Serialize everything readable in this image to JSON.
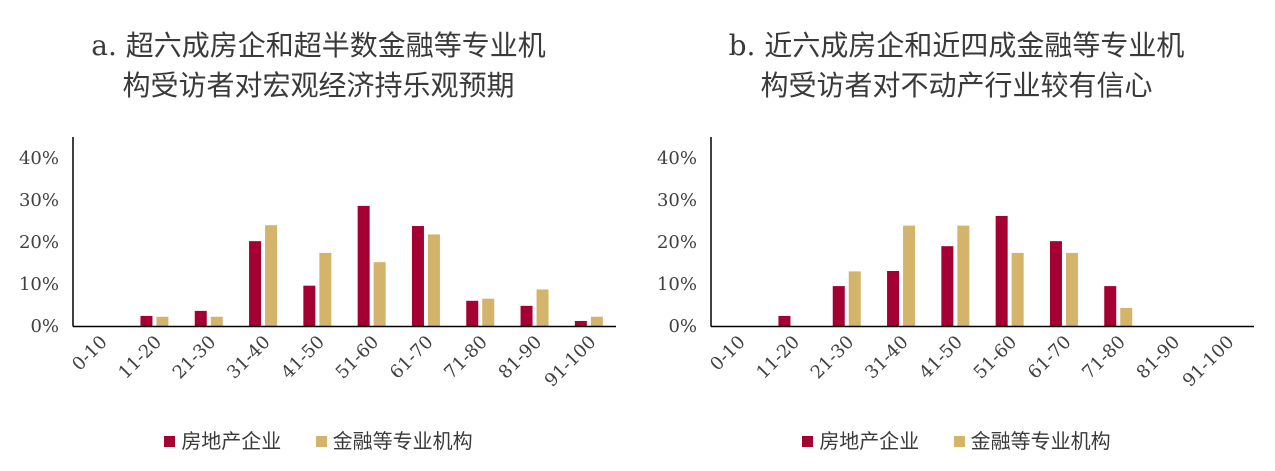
{
  "colors": {
    "series1": "#A50034",
    "series2": "#D4B46A",
    "axis": "#000000",
    "text": "#404040"
  },
  "chart_data": [
    {
      "type": "bar",
      "title_lines": [
        "a. 超六成房企和超半数金融等专业机",
        "构受访者对宏观经济持乐观预期"
      ],
      "categories": [
        "0-10",
        "11-20",
        "21-30",
        "31-40",
        "41-50",
        "51-60",
        "61-70",
        "71-80",
        "81-90",
        "91-100"
      ],
      "series": [
        {
          "name": "房地产企业",
          "values": [
            0,
            2.4,
            3.6,
            20.2,
            9.6,
            28.6,
            23.8,
            6.0,
            4.8,
            1.2
          ]
        },
        {
          "name": "金融等专业机构",
          "values": [
            0,
            2.2,
            2.2,
            24.0,
            17.4,
            15.2,
            21.8,
            6.5,
            8.7,
            2.2
          ]
        }
      ],
      "y_ticks": [
        "0%",
        "10%",
        "20%",
        "30%",
        "40%"
      ],
      "ylim": [
        0,
        40
      ],
      "legend_position": "bottom"
    },
    {
      "type": "bar",
      "title_lines": [
        "b. 近六成房企和近四成金融等专业机",
        "构受访者对不动产行业较有信心"
      ],
      "categories": [
        "0-10",
        "11-20",
        "21-30",
        "31-40",
        "41-50",
        "51-60",
        "61-70",
        "71-80",
        "81-90",
        "91-100"
      ],
      "series": [
        {
          "name": "房地产企业",
          "values": [
            0,
            2.4,
            9.5,
            13.1,
            19.0,
            26.2,
            20.2,
            9.5,
            0,
            0
          ]
        },
        {
          "name": "金融等专业机构",
          "values": [
            0,
            0,
            13.0,
            23.9,
            23.9,
            17.4,
            17.4,
            4.3,
            0,
            0
          ]
        }
      ],
      "y_ticks": [
        "0%",
        "10%",
        "20%",
        "30%",
        "40%"
      ],
      "ylim": [
        0,
        40
      ],
      "legend_position": "bottom"
    }
  ]
}
